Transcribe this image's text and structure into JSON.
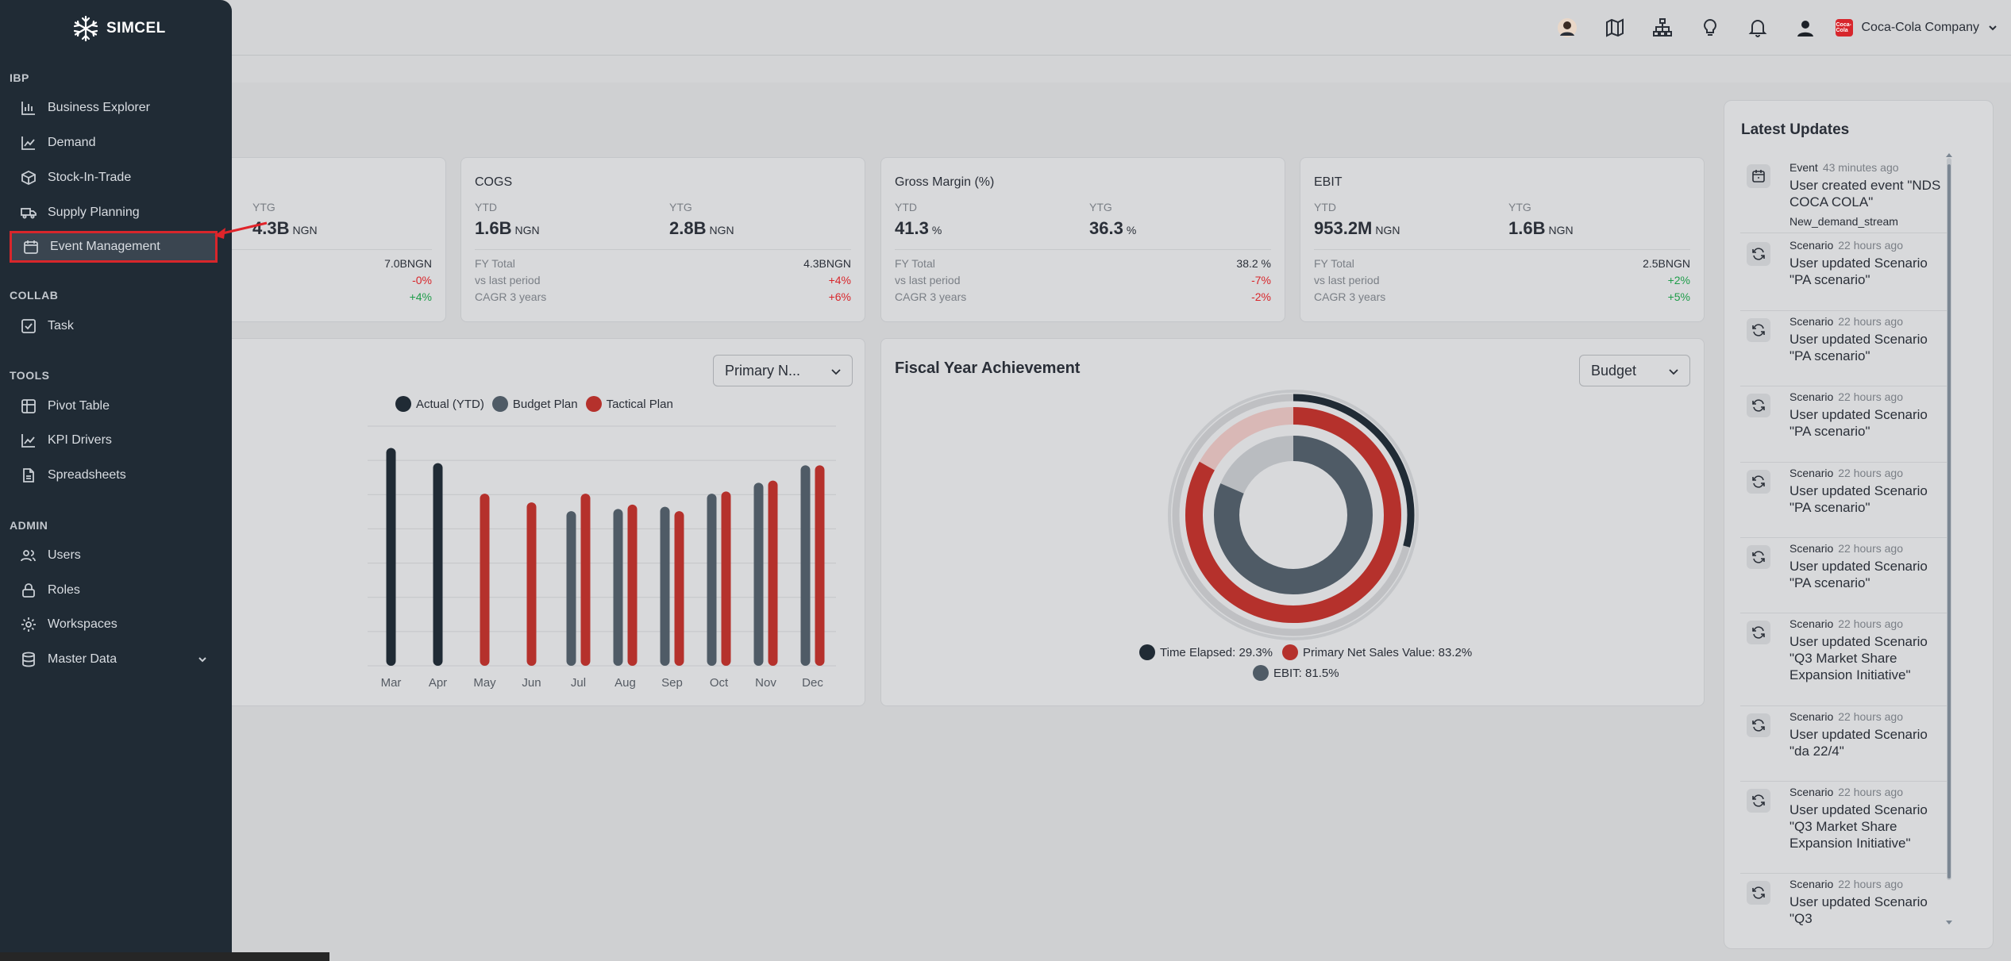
{
  "brand": {
    "name": "SIMCEL"
  },
  "header": {
    "company": "Coca-Cola Company",
    "company_logo_text": "Coca-Cola"
  },
  "sidebar": {
    "sections": [
      {
        "label": "IBP",
        "items": [
          "Business Explorer",
          "Demand",
          "Stock-In-Trade",
          "Supply Planning",
          "Event Management"
        ]
      },
      {
        "label": "COLLAB",
        "items": [
          "Task"
        ]
      },
      {
        "label": "TOOLS",
        "items": [
          "Pivot Table",
          "KPI Drivers",
          "Spreadsheets"
        ]
      },
      {
        "label": "ADMIN",
        "items": [
          "Users",
          "Roles",
          "Workspaces",
          "Master Data"
        ]
      }
    ],
    "active_item": "Event Management"
  },
  "kpis": [
    {
      "title": "",
      "ytd_label": "",
      "ytd_value": "",
      "ytd_unit": "",
      "ytg_label": "YTG",
      "ytg_value": "4.3B",
      "ytg_unit": "NGN",
      "fy_total": "7.0B",
      "fy_unit": "NGN",
      "vs_last": "-0%",
      "cagr": "+4%"
    },
    {
      "title": "COGS",
      "ytd_label": "YTD",
      "ytd_value": "1.6B",
      "ytd_unit": "NGN",
      "ytg_label": "YTG",
      "ytg_value": "2.8B",
      "ytg_unit": "NGN",
      "fy_label": "FY Total",
      "fy_total": "4.3B",
      "fy_unit": "NGN",
      "vs_label": "vs last period",
      "vs_last": "+4%",
      "cagr_label": "CAGR 3 years",
      "cagr": "+6%"
    },
    {
      "title": "Gross Margin (%)",
      "ytd_label": "YTD",
      "ytd_value": "41.3",
      "ytd_unit": "%",
      "ytg_label": "YTG",
      "ytg_value": "36.3",
      "ytg_unit": "%",
      "fy_label": "FY Total",
      "fy_total": "38.2",
      "fy_unit": "%",
      "vs_label": "vs last period",
      "vs_last": "-7%",
      "cagr_label": "CAGR 3 years",
      "cagr": "-2%"
    },
    {
      "title": "EBIT",
      "ytd_label": "YTD",
      "ytd_value": "953.2M",
      "ytd_unit": "NGN",
      "ytg_label": "YTG",
      "ytg_value": "1.6B",
      "ytg_unit": "NGN",
      "fy_label": "FY Total",
      "fy_total": "2.5B",
      "fy_unit": "NGN",
      "vs_label": "vs last period",
      "vs_last": "+2%",
      "cagr_label": "CAGR 3 years",
      "cagr": "+5%"
    }
  ],
  "monthly_card": {
    "select_value": "Primary N..."
  },
  "fiscal_card": {
    "title": "Fiscal Year Achievement",
    "select_value": "Budget"
  },
  "chart_data": [
    {
      "type": "bar",
      "categories": [
        "Mar",
        "Apr",
        "May",
        "Jun",
        "Jul",
        "Aug",
        "Sep",
        "Oct",
        "Nov",
        "Dec"
      ],
      "series": [
        {
          "name": "Actual (YTD)",
          "color": "#202b35",
          "values": [
            100,
            93,
            null,
            null,
            null,
            null,
            null,
            null,
            null,
            null
          ]
        },
        {
          "name": "Budget Plan",
          "color": "#4f5b66",
          "values": [
            null,
            null,
            null,
            null,
            71,
            72,
            73,
            79,
            84,
            92
          ]
        },
        {
          "name": "Tactical Plan",
          "color": "#b5312c",
          "values": [
            null,
            null,
            79,
            75,
            79,
            74,
            71,
            80,
            85,
            92
          ]
        }
      ],
      "ylim": [
        0,
        110
      ],
      "grid": true,
      "legend": "top"
    },
    {
      "type": "pie",
      "style": "radial-progress",
      "series": [
        {
          "name": "Time Elapsed",
          "value": 29.3,
          "color": "#202b35"
        },
        {
          "name": "Primary Net Sales Value",
          "value": 83.2,
          "color": "#b5312c"
        },
        {
          "name": "EBIT",
          "value": 81.5,
          "color": "#4f5b66"
        }
      ],
      "legend_text": [
        "Time Elapsed: 29.3%",
        "Primary Net Sales Value: 83.2%",
        "EBIT: 81.5%"
      ],
      "legend": "bottom"
    }
  ],
  "updates": {
    "title": "Latest Updates",
    "items": [
      {
        "type": "Event",
        "time": "43 minutes ago",
        "message": "User created event \"NDS COCA COLA\"",
        "sub": "New_demand_stream",
        "icon": "calendar-icon"
      },
      {
        "type": "Scenario",
        "time": "22 hours ago",
        "message": "User updated Scenario \"PA scenario\"",
        "icon": "refresh-icon"
      },
      {
        "type": "Scenario",
        "time": "22 hours ago",
        "message": "User updated Scenario \"PA scenario\"",
        "icon": "refresh-icon"
      },
      {
        "type": "Scenario",
        "time": "22 hours ago",
        "message": "User updated Scenario \"PA scenario\"",
        "icon": "refresh-icon"
      },
      {
        "type": "Scenario",
        "time": "22 hours ago",
        "message": "User updated Scenario \"PA scenario\"",
        "icon": "refresh-icon"
      },
      {
        "type": "Scenario",
        "time": "22 hours ago",
        "message": "User updated Scenario \"PA scenario\"",
        "icon": "refresh-icon"
      },
      {
        "type": "Scenario",
        "time": "22 hours ago",
        "message": "User updated Scenario \"Q3 Market Share Expansion Initiative\"",
        "icon": "refresh-icon"
      },
      {
        "type": "Scenario",
        "time": "22 hours ago",
        "message": "User updated Scenario \"da 22/4\"",
        "icon": "refresh-icon"
      },
      {
        "type": "Scenario",
        "time": "22 hours ago",
        "message": "User updated Scenario \"Q3 Market Share Expansion Initiative\"",
        "icon": "refresh-icon"
      },
      {
        "type": "Scenario",
        "time": "22 hours ago",
        "message": "User updated Scenario \"Q3",
        "icon": "refresh-icon"
      }
    ]
  }
}
